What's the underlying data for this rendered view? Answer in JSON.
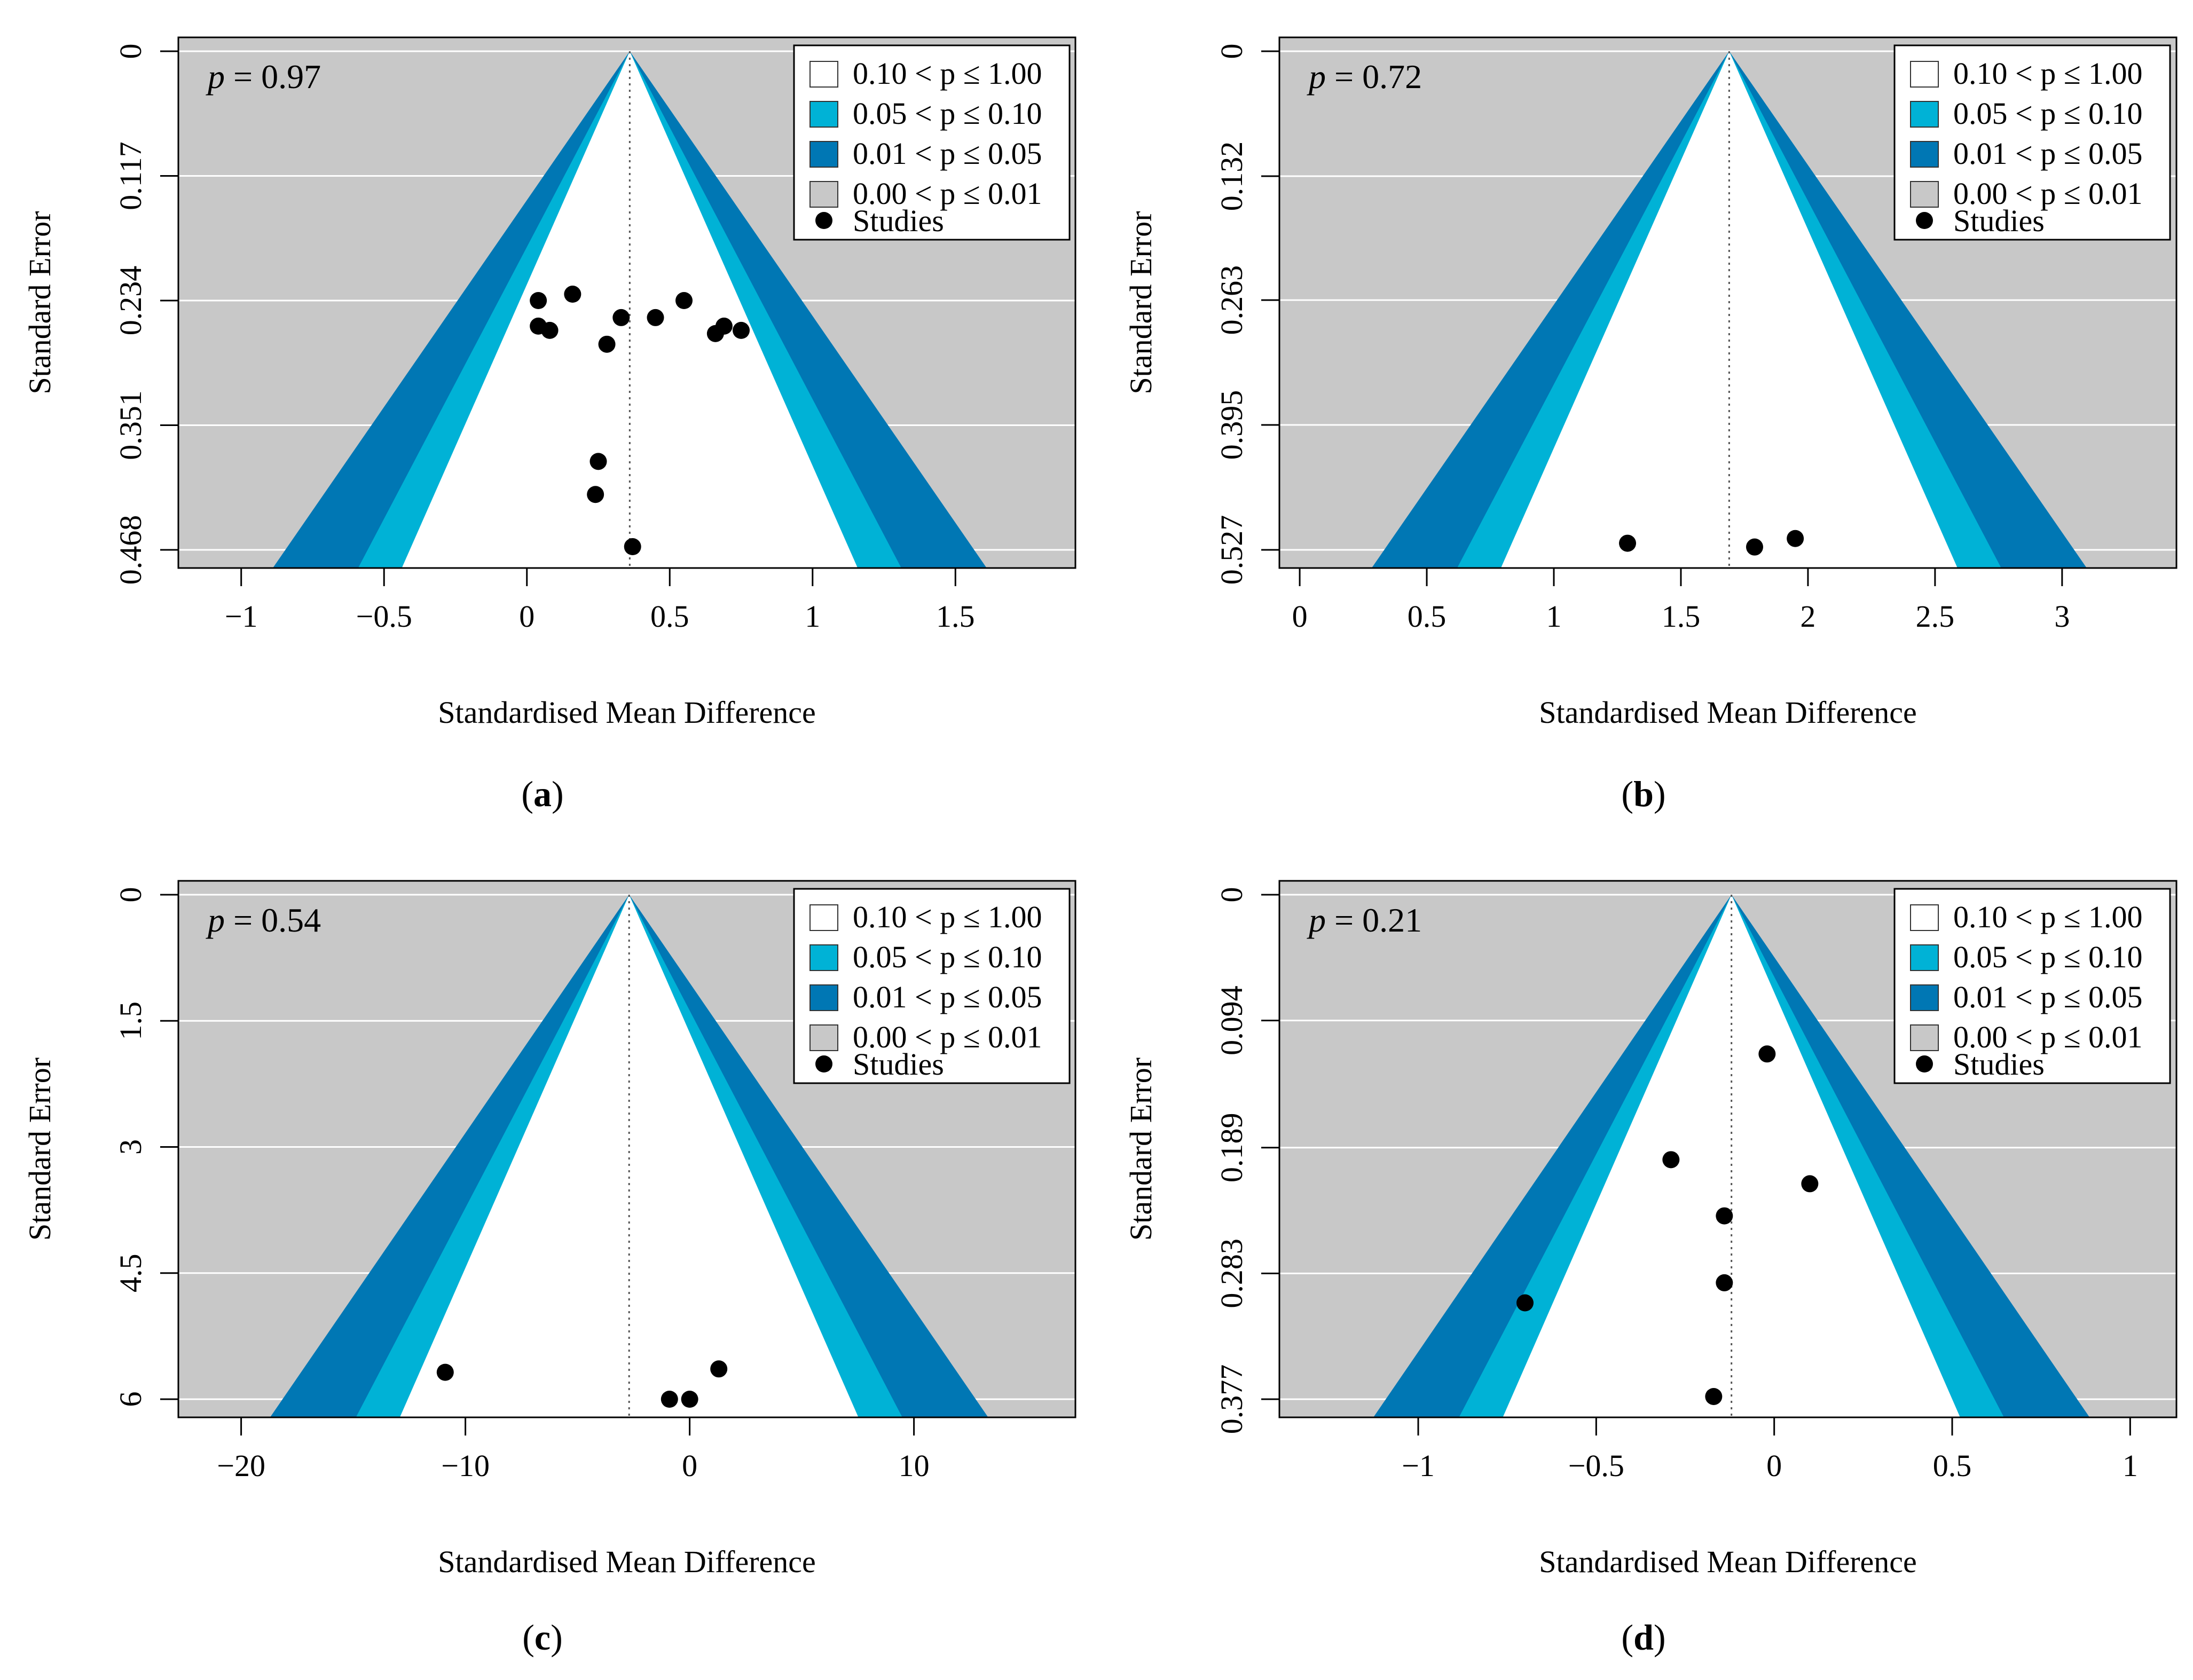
{
  "colors": {
    "panel_bg": "#c8c8c8",
    "band_white": "#ffffff",
    "band_010": "#00b2d6",
    "band_005": "#0077b4",
    "band_001": "#c8c8c8",
    "gridline": "#ffffff",
    "dot": "#000000",
    "vline": "#555555"
  },
  "legend": {
    "items": [
      {
        "label": "0.10 < p ≤ 1.00",
        "color": "#ffffff"
      },
      {
        "label": "0.05 < p ≤ 0.10",
        "color": "#00b2d6"
      },
      {
        "label": "0.01 < p ≤ 0.05",
        "color": "#0077b4"
      },
      {
        "label": "0.00 < p ≤ 0.01",
        "color": "#c8c8c8"
      }
    ],
    "studies_label": "Studies"
  },
  "chart_data": [
    {
      "type": "scatter",
      "subtype": "contour-enhanced funnel plot",
      "panel_label": "a",
      "p_label": "p",
      "p_value": "= 0.97",
      "xlabel": "Standardised Mean Difference",
      "ylabel": "Standard Error",
      "xlim": [
        -1.22,
        1.92
      ],
      "x_ticks": [
        -1,
        -0.5,
        0,
        0.5,
        1,
        1.5
      ],
      "x_tick_labels": [
        "−1",
        "−0.5",
        "0",
        "0.5",
        "1",
        "1.5"
      ],
      "ylim": [
        0,
        0.468
      ],
      "y_ticks": [
        0,
        0.117,
        0.234,
        0.351,
        0.468
      ],
      "y_tick_labels": [
        "0",
        "0.117",
        "0.234",
        "0.351",
        "0.468"
      ],
      "center": 0.36,
      "points": [
        {
          "x": 0.04,
          "y": 0.234
        },
        {
          "x": 0.16,
          "y": 0.228
        },
        {
          "x": 0.04,
          "y": 0.258
        },
        {
          "x": 0.08,
          "y": 0.262
        },
        {
          "x": 0.28,
          "y": 0.275
        },
        {
          "x": 0.33,
          "y": 0.25
        },
        {
          "x": 0.45,
          "y": 0.25
        },
        {
          "x": 0.55,
          "y": 0.234
        },
        {
          "x": 0.66,
          "y": 0.265
        },
        {
          "x": 0.69,
          "y": 0.258
        },
        {
          "x": 0.75,
          "y": 0.262
        },
        {
          "x": 0.25,
          "y": 0.385
        },
        {
          "x": 0.24,
          "y": 0.416
        },
        {
          "x": 0.37,
          "y": 0.465
        }
      ]
    },
    {
      "type": "scatter",
      "subtype": "contour-enhanced funnel plot",
      "panel_label": "b",
      "p_label": "p",
      "p_value": "= 0.72",
      "xlabel": "Standardised Mean Difference",
      "ylabel": "Standard Error",
      "xlim": [
        -0.08,
        3.45
      ],
      "x_ticks": [
        0,
        0.5,
        1,
        1.5,
        2,
        2.5,
        3
      ],
      "x_tick_labels": [
        "0",
        "0.5",
        "1",
        "1.5",
        "2",
        "2.5",
        "3"
      ],
      "ylim": [
        0,
        0.527
      ],
      "y_ticks": [
        0,
        0.132,
        0.263,
        0.395,
        0.527
      ],
      "y_tick_labels": [
        "0",
        "0.132",
        "0.263",
        "0.395",
        "0.527"
      ],
      "center": 1.69,
      "points": [
        {
          "x": 1.29,
          "y": 0.52
        },
        {
          "x": 1.79,
          "y": 0.524
        },
        {
          "x": 1.95,
          "y": 0.515
        }
      ]
    },
    {
      "type": "scatter",
      "subtype": "contour-enhanced funnel plot",
      "panel_label": "c",
      "p_label": "p",
      "p_value": "= 0.54",
      "xlabel": "Standardised Mean Difference",
      "ylabel": "Standard Error",
      "xlim": [
        -22.8,
        17.2
      ],
      "x_ticks": [
        -20,
        -10,
        0,
        10
      ],
      "x_tick_labels": [
        "−20",
        "−10",
        "0",
        "10"
      ],
      "ylim": [
        0,
        6
      ],
      "y_ticks": [
        0,
        1.5,
        3,
        4.5,
        6
      ],
      "y_tick_labels": [
        "0",
        "1.5",
        "3",
        "4.5",
        "6"
      ],
      "center": -2.7,
      "points": [
        {
          "x": -10.9,
          "y": 5.68
        },
        {
          "x": -0.9,
          "y": 6.0
        },
        {
          "x": 0.0,
          "y": 6.0
        },
        {
          "x": 1.3,
          "y": 5.64
        }
      ]
    },
    {
      "type": "scatter",
      "subtype": "contour-enhanced funnel plot",
      "panel_label": "d",
      "p_label": "p",
      "p_value": "= 0.21",
      "xlabel": "Standardised Mean Difference",
      "ylabel": "Standard Error",
      "xlim": [
        -1.39,
        1.13
      ],
      "x_ticks": [
        -1,
        -0.5,
        0,
        0.5,
        1
      ],
      "x_tick_labels": [
        "−1",
        "−0.5",
        "0",
        "0.5",
        "1"
      ],
      "ylim": [
        0,
        0.377
      ],
      "y_ticks": [
        0,
        0.094,
        0.189,
        0.283,
        0.377
      ],
      "y_tick_labels": [
        "0",
        "0.094",
        "0.189",
        "0.283",
        "0.377"
      ],
      "center": -0.12,
      "points": [
        {
          "x": -0.02,
          "y": 0.119
        },
        {
          "x": -0.29,
          "y": 0.198
        },
        {
          "x": 0.1,
          "y": 0.216
        },
        {
          "x": -0.14,
          "y": 0.24
        },
        {
          "x": -0.14,
          "y": 0.29
        },
        {
          "x": -0.7,
          "y": 0.305
        },
        {
          "x": -0.17,
          "y": 0.375
        }
      ]
    }
  ]
}
